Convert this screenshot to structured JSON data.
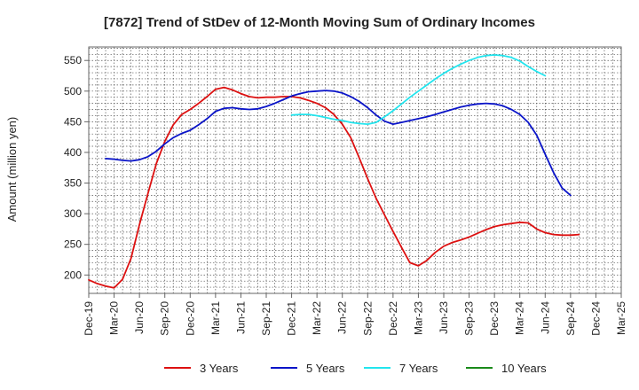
{
  "chart_data": {
    "type": "line",
    "title": "[7872]  Trend of StDev of 12-Month Moving Sum of Ordinary Incomes",
    "ylabel": "Amount (million yen)",
    "xlabel": "",
    "ylim": [
      170,
      572
    ],
    "yticks": [
      200,
      250,
      300,
      350,
      400,
      450,
      500,
      550
    ],
    "xticks": [
      "Dec-19",
      "Mar-20",
      "Jun-20",
      "Sep-20",
      "Dec-20",
      "Mar-21",
      "Jun-21",
      "Sep-21",
      "Dec-21",
      "Mar-22",
      "Jun-22",
      "Sep-22",
      "Dec-22",
      "Mar-23",
      "Jun-23",
      "Sep-23",
      "Dec-23",
      "Mar-24",
      "Jun-24",
      "Sep-24",
      "Dec-24",
      "Mar-25"
    ],
    "grid": true,
    "legend_position": "bottom",
    "series": [
      {
        "name": "3 Years",
        "color": "#dd1111",
        "values": [
          [
            0,
            192
          ],
          [
            1,
            186
          ],
          [
            2,
            182
          ],
          [
            3,
            179
          ],
          [
            4,
            193
          ],
          [
            5,
            227
          ],
          [
            6,
            282
          ],
          [
            7,
            333
          ],
          [
            8,
            382
          ],
          [
            9,
            418
          ],
          [
            10,
            445
          ],
          [
            11,
            462
          ],
          [
            12,
            470
          ],
          [
            13,
            480
          ],
          [
            14,
            491
          ],
          [
            15,
            503
          ],
          [
            16,
            506
          ],
          [
            17,
            502
          ],
          [
            18,
            496
          ],
          [
            19,
            491
          ],
          [
            20,
            489
          ],
          [
            21,
            490
          ],
          [
            22,
            490
          ],
          [
            23,
            491
          ],
          [
            24,
            491
          ],
          [
            25,
            489
          ],
          [
            26,
            485
          ],
          [
            27,
            480
          ],
          [
            28,
            473
          ],
          [
            29,
            462
          ],
          [
            30,
            446
          ],
          [
            31,
            424
          ],
          [
            32,
            391
          ],
          [
            33,
            357
          ],
          [
            34,
            325
          ],
          [
            35,
            298
          ],
          [
            36,
            271
          ],
          [
            37,
            245
          ],
          [
            38,
            220
          ],
          [
            39,
            215
          ],
          [
            40,
            224
          ],
          [
            41,
            237
          ],
          [
            42,
            247
          ],
          [
            43,
            253
          ],
          [
            44,
            257
          ],
          [
            45,
            262
          ],
          [
            46,
            268
          ],
          [
            47,
            274
          ],
          [
            48,
            279
          ],
          [
            49,
            282
          ],
          [
            50,
            284
          ],
          [
            51,
            286
          ],
          [
            52,
            285
          ],
          [
            53,
            275
          ],
          [
            54,
            269
          ],
          [
            55,
            266
          ],
          [
            56,
            265
          ],
          [
            57,
            265
          ],
          [
            58,
            266
          ]
        ]
      },
      {
        "name": "5 Years",
        "color": "#0a14c8",
        "values": [
          [
            2,
            390
          ],
          [
            3,
            389
          ],
          [
            4,
            387
          ],
          [
            5,
            386
          ],
          [
            6,
            388
          ],
          [
            7,
            393
          ],
          [
            8,
            402
          ],
          [
            9,
            414
          ],
          [
            10,
            424
          ],
          [
            11,
            431
          ],
          [
            12,
            436
          ],
          [
            13,
            445
          ],
          [
            14,
            455
          ],
          [
            15,
            467
          ],
          [
            16,
            472
          ],
          [
            17,
            473
          ],
          [
            18,
            471
          ],
          [
            19,
            470
          ],
          [
            20,
            471
          ],
          [
            21,
            475
          ],
          [
            22,
            480
          ],
          [
            23,
            486
          ],
          [
            24,
            492
          ],
          [
            25,
            496
          ],
          [
            26,
            499
          ],
          [
            27,
            500
          ],
          [
            28,
            501
          ],
          [
            29,
            500
          ],
          [
            30,
            497
          ],
          [
            31,
            491
          ],
          [
            32,
            483
          ],
          [
            33,
            473
          ],
          [
            34,
            461
          ],
          [
            35,
            451
          ],
          [
            36,
            446
          ],
          [
            37,
            449
          ],
          [
            38,
            452
          ],
          [
            39,
            455
          ],
          [
            40,
            458
          ],
          [
            41,
            462
          ],
          [
            42,
            466
          ],
          [
            43,
            470
          ],
          [
            44,
            474
          ],
          [
            45,
            477
          ],
          [
            46,
            479
          ],
          [
            47,
            480
          ],
          [
            48,
            479
          ],
          [
            49,
            476
          ],
          [
            50,
            470
          ],
          [
            51,
            462
          ],
          [
            52,
            449
          ],
          [
            53,
            428
          ],
          [
            54,
            397
          ],
          [
            55,
            367
          ],
          [
            56,
            342
          ],
          [
            57,
            330
          ]
        ]
      },
      {
        "name": "7 Years",
        "color": "#22e5ee",
        "values": [
          [
            24,
            461
          ],
          [
            25,
            462
          ],
          [
            26,
            462
          ],
          [
            27,
            460
          ],
          [
            28,
            457
          ],
          [
            29,
            454
          ],
          [
            30,
            452
          ],
          [
            31,
            449
          ],
          [
            32,
            447
          ],
          [
            33,
            446
          ],
          [
            34,
            449
          ],
          [
            35,
            458
          ],
          [
            36,
            468
          ],
          [
            37,
            479
          ],
          [
            38,
            490
          ],
          [
            39,
            500
          ],
          [
            40,
            510
          ],
          [
            41,
            520
          ],
          [
            42,
            529
          ],
          [
            43,
            537
          ],
          [
            44,
            544
          ],
          [
            45,
            550
          ],
          [
            46,
            555
          ],
          [
            47,
            558
          ],
          [
            48,
            559
          ],
          [
            49,
            558
          ],
          [
            50,
            555
          ],
          [
            51,
            549
          ],
          [
            52,
            540
          ],
          [
            53,
            532
          ],
          [
            54,
            525
          ]
        ]
      },
      {
        "name": "10 Years",
        "color": "#1a8a1a",
        "values": []
      }
    ]
  }
}
